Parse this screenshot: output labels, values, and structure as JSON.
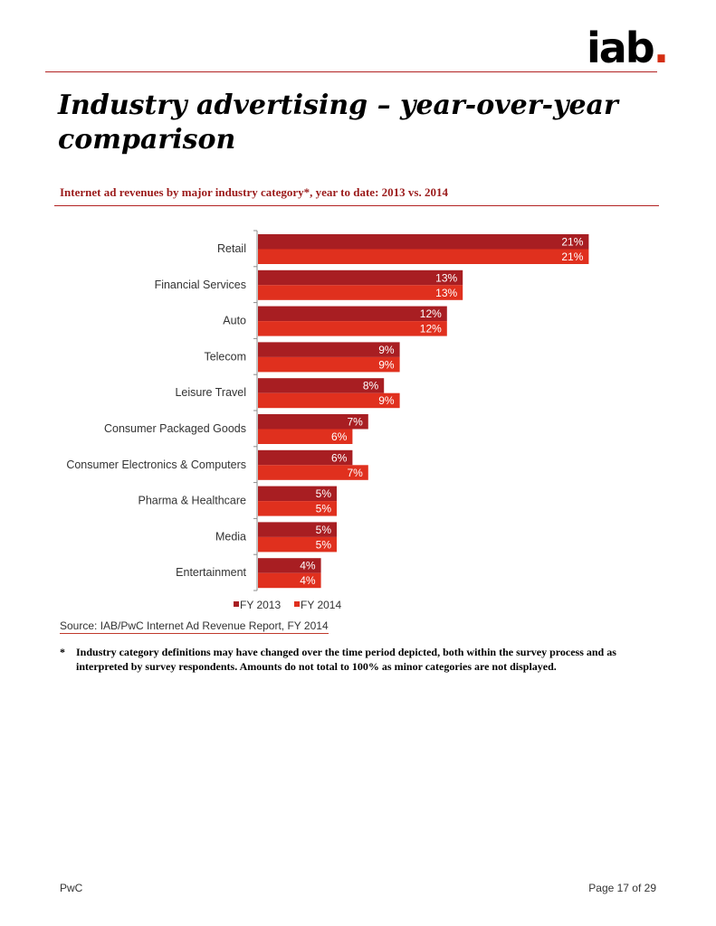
{
  "logo": {
    "text": "iab",
    "dot": "."
  },
  "page_title": "Industry advertising – year-over-year comparison",
  "chart_data": {
    "type": "bar",
    "orientation": "horizontal",
    "title": "Internet ad revenues by major industry category*, year to date: 2013 vs. 2014",
    "categories": [
      "Retail",
      "Financial Services",
      "Auto",
      "Telecom",
      "Leisure Travel",
      "Consumer Packaged Goods",
      "Consumer Electronics & Computers",
      "Pharma & Healthcare",
      "Media",
      "Entertainment"
    ],
    "series": [
      {
        "name": "FY 2013",
        "color": "#a81e22",
        "values": [
          21,
          13,
          12,
          9,
          8,
          7,
          6,
          5,
          5,
          4
        ]
      },
      {
        "name": "FY 2014",
        "color": "#e0301e",
        "values": [
          21,
          13,
          12,
          9,
          9,
          6,
          7,
          5,
          5,
          4
        ]
      }
    ],
    "value_suffix": "%",
    "xlim": [
      0,
      22
    ],
    "grid": false,
    "legend_position": "bottom"
  },
  "source": "Source: IAB/PwC Internet Ad Revenue Report, FY 2014",
  "footnote": {
    "marker": "*",
    "text": "Industry category definitions may have changed over the time period depicted, both within the survey process and as interpreted by survey respondents. Amounts do not total to 100% as minor categories are not displayed."
  },
  "footer": {
    "left": "PwC",
    "right": "Page 17 of 29"
  }
}
